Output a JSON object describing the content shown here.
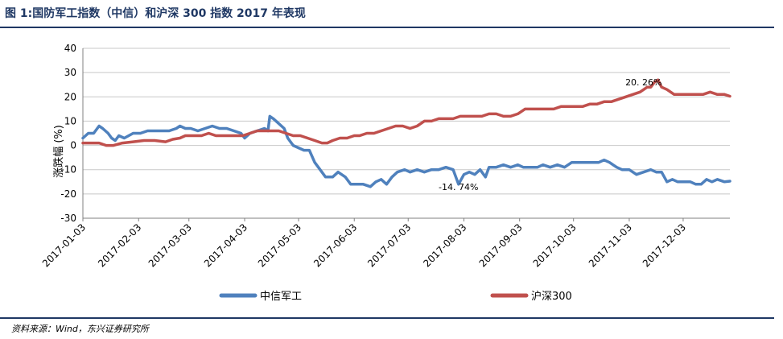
{
  "title": "图 1:国防军工指数（中信）和沪深 300 指数 2017 年表现",
  "source": "资料来源：Wind，东兴证券研究所",
  "chart_data": {
    "type": "line",
    "title": "图 1:国防军工指数（中信）和沪深 300 指数 2017 年表现",
    "xlabel": "",
    "ylabel": "涨跌幅 (%)",
    "ylim": [
      -30,
      40
    ],
    "yticks": [
      -30,
      -20,
      -10,
      0,
      10,
      20,
      30,
      40
    ],
    "xticks": [
      "2017-01-03",
      "2017-02-03",
      "2017-03-03",
      "2017-04-03",
      "2017-05-03",
      "2017-06-03",
      "2017-07-03",
      "2017-08-03",
      "2017-09-03",
      "2017-10-03",
      "2017-11-03",
      "2017-12-03"
    ],
    "xlim": [
      "2017-01-03",
      "2017-12-29"
    ],
    "grid": true,
    "legend": "bottom",
    "annotations": [
      {
        "text": "20. 26%",
        "x": "2017-11-11",
        "y": 26
      },
      {
        "text": "-14. 74%",
        "x": "2017-07-31",
        "y": -17
      }
    ],
    "series": [
      {
        "name": "中信军工",
        "color": "#4f81bd",
        "points": [
          [
            "2017-01-03",
            3
          ],
          [
            "2017-01-06",
            5
          ],
          [
            "2017-01-09",
            5
          ],
          [
            "2017-01-12",
            8
          ],
          [
            "2017-01-14",
            7
          ],
          [
            "2017-01-17",
            5
          ],
          [
            "2017-01-19",
            3
          ],
          [
            "2017-01-21",
            2
          ],
          [
            "2017-01-23",
            4
          ],
          [
            "2017-01-26",
            3
          ],
          [
            "2017-01-31",
            5
          ],
          [
            "2017-02-04",
            5
          ],
          [
            "2017-02-08",
            6
          ],
          [
            "2017-02-13",
            6
          ],
          [
            "2017-02-20",
            6
          ],
          [
            "2017-02-24",
            7
          ],
          [
            "2017-02-26",
            8
          ],
          [
            "2017-03-01",
            7
          ],
          [
            "2017-03-04",
            7
          ],
          [
            "2017-03-08",
            6
          ],
          [
            "2017-03-12",
            7
          ],
          [
            "2017-03-16",
            8
          ],
          [
            "2017-03-20",
            7
          ],
          [
            "2017-03-24",
            7
          ],
          [
            "2017-03-28",
            6
          ],
          [
            "2017-04-01",
            5
          ],
          [
            "2017-04-03",
            3
          ],
          [
            "2017-04-06",
            5
          ],
          [
            "2017-04-10",
            6
          ],
          [
            "2017-04-14",
            7
          ],
          [
            "2017-04-16",
            6
          ],
          [
            "2017-04-17",
            12
          ],
          [
            "2017-04-19",
            11
          ],
          [
            "2017-04-22",
            9
          ],
          [
            "2017-04-25",
            7
          ],
          [
            "2017-04-27",
            3
          ],
          [
            "2017-04-30",
            0
          ],
          [
            "2017-05-03",
            -1
          ],
          [
            "2017-05-06",
            -2
          ],
          [
            "2017-05-09",
            -2
          ],
          [
            "2017-05-12",
            -7
          ],
          [
            "2017-05-15",
            -10
          ],
          [
            "2017-05-18",
            -13
          ],
          [
            "2017-05-22",
            -13
          ],
          [
            "2017-05-25",
            -11
          ],
          [
            "2017-05-29",
            -13
          ],
          [
            "2017-06-01",
            -16
          ],
          [
            "2017-06-04",
            -16
          ],
          [
            "2017-06-08",
            -16
          ],
          [
            "2017-06-12",
            -17
          ],
          [
            "2017-06-15",
            -15
          ],
          [
            "2017-06-18",
            -14
          ],
          [
            "2017-06-21",
            -16
          ],
          [
            "2017-06-24",
            -13
          ],
          [
            "2017-06-27",
            -11
          ],
          [
            "2017-07-01",
            -10
          ],
          [
            "2017-07-04",
            -11
          ],
          [
            "2017-07-08",
            -10
          ],
          [
            "2017-07-12",
            -11
          ],
          [
            "2017-07-16",
            -10
          ],
          [
            "2017-07-20",
            -10
          ],
          [
            "2017-07-24",
            -9
          ],
          [
            "2017-07-28",
            -10
          ],
          [
            "2017-07-31",
            -16
          ],
          [
            "2017-08-03",
            -12
          ],
          [
            "2017-08-06",
            -11
          ],
          [
            "2017-08-09",
            -12
          ],
          [
            "2017-08-12",
            -10
          ],
          [
            "2017-08-15",
            -13
          ],
          [
            "2017-08-17",
            -9
          ],
          [
            "2017-08-21",
            -9
          ],
          [
            "2017-08-25",
            -8
          ],
          [
            "2017-08-29",
            -9
          ],
          [
            "2017-09-02",
            -8
          ],
          [
            "2017-09-05",
            -9
          ],
          [
            "2017-09-09",
            -9
          ],
          [
            "2017-09-13",
            -9
          ],
          [
            "2017-09-16",
            -8
          ],
          [
            "2017-09-20",
            -9
          ],
          [
            "2017-09-24",
            -8
          ],
          [
            "2017-09-28",
            -9
          ],
          [
            "2017-10-02",
            -7
          ],
          [
            "2017-10-06",
            -7
          ],
          [
            "2017-10-10",
            -7
          ],
          [
            "2017-10-14",
            -7
          ],
          [
            "2017-10-17",
            -7
          ],
          [
            "2017-10-20",
            -6
          ],
          [
            "2017-10-23",
            -7
          ],
          [
            "2017-10-27",
            -9
          ],
          [
            "2017-10-30",
            -10
          ],
          [
            "2017-11-03",
            -10
          ],
          [
            "2017-11-07",
            -12
          ],
          [
            "2017-11-11",
            -11
          ],
          [
            "2017-11-15",
            -10
          ],
          [
            "2017-11-18",
            -11
          ],
          [
            "2017-11-21",
            -11
          ],
          [
            "2017-11-24",
            -15
          ],
          [
            "2017-11-27",
            -14
          ],
          [
            "2017-11-30",
            -15
          ],
          [
            "2017-12-03",
            -15
          ],
          [
            "2017-12-07",
            -15
          ],
          [
            "2017-12-10",
            -16
          ],
          [
            "2017-12-13",
            -16
          ],
          [
            "2017-12-16",
            -14
          ],
          [
            "2017-12-19",
            -15
          ],
          [
            "2017-12-22",
            -14
          ],
          [
            "2017-12-26",
            -15
          ],
          [
            "2017-12-29",
            -14.74
          ]
        ]
      },
      {
        "name": "沪深300",
        "color": "#c0504d",
        "points": [
          [
            "2017-01-03",
            1
          ],
          [
            "2017-01-08",
            1
          ],
          [
            "2017-01-12",
            1
          ],
          [
            "2017-01-16",
            0
          ],
          [
            "2017-01-20",
            0
          ],
          [
            "2017-01-25",
            1
          ],
          [
            "2017-01-31",
            1.5
          ],
          [
            "2017-02-06",
            2
          ],
          [
            "2017-02-12",
            2
          ],
          [
            "2017-02-18",
            1.5
          ],
          [
            "2017-02-22",
            2.5
          ],
          [
            "2017-02-26",
            3
          ],
          [
            "2017-03-01",
            4
          ],
          [
            "2017-03-06",
            4
          ],
          [
            "2017-03-10",
            4
          ],
          [
            "2017-03-14",
            5
          ],
          [
            "2017-03-18",
            4
          ],
          [
            "2017-03-22",
            4
          ],
          [
            "2017-03-26",
            4
          ],
          [
            "2017-04-02",
            4
          ],
          [
            "2017-04-06",
            5
          ],
          [
            "2017-04-10",
            6
          ],
          [
            "2017-04-14",
            6
          ],
          [
            "2017-04-18",
            6
          ],
          [
            "2017-04-22",
            6
          ],
          [
            "2017-04-26",
            5
          ],
          [
            "2017-04-30",
            4
          ],
          [
            "2017-05-04",
            4
          ],
          [
            "2017-05-08",
            3
          ],
          [
            "2017-05-12",
            2
          ],
          [
            "2017-05-16",
            1
          ],
          [
            "2017-05-19",
            1
          ],
          [
            "2017-05-22",
            2
          ],
          [
            "2017-05-26",
            3
          ],
          [
            "2017-05-30",
            3
          ],
          [
            "2017-06-03",
            4
          ],
          [
            "2017-06-06",
            4
          ],
          [
            "2017-06-10",
            5
          ],
          [
            "2017-06-14",
            5
          ],
          [
            "2017-06-18",
            6
          ],
          [
            "2017-06-22",
            7
          ],
          [
            "2017-06-26",
            8
          ],
          [
            "2017-06-30",
            8
          ],
          [
            "2017-07-04",
            7
          ],
          [
            "2017-07-08",
            8
          ],
          [
            "2017-07-12",
            10
          ],
          [
            "2017-07-16",
            10
          ],
          [
            "2017-07-20",
            11
          ],
          [
            "2017-07-24",
            11
          ],
          [
            "2017-07-28",
            11
          ],
          [
            "2017-08-01",
            12
          ],
          [
            "2017-08-05",
            12
          ],
          [
            "2017-08-09",
            12
          ],
          [
            "2017-08-13",
            12
          ],
          [
            "2017-08-17",
            13
          ],
          [
            "2017-08-21",
            13
          ],
          [
            "2017-08-25",
            12
          ],
          [
            "2017-08-29",
            12
          ],
          [
            "2017-09-02",
            13
          ],
          [
            "2017-09-06",
            15
          ],
          [
            "2017-09-10",
            15
          ],
          [
            "2017-09-14",
            15
          ],
          [
            "2017-09-18",
            15
          ],
          [
            "2017-09-22",
            15
          ],
          [
            "2017-09-26",
            16
          ],
          [
            "2017-09-30",
            16
          ],
          [
            "2017-10-04",
            16
          ],
          [
            "2017-10-08",
            16
          ],
          [
            "2017-10-12",
            17
          ],
          [
            "2017-10-16",
            17
          ],
          [
            "2017-10-20",
            18
          ],
          [
            "2017-10-24",
            18
          ],
          [
            "2017-10-28",
            19
          ],
          [
            "2017-11-01",
            20
          ],
          [
            "2017-11-05",
            21
          ],
          [
            "2017-11-09",
            22
          ],
          [
            "2017-11-13",
            24
          ],
          [
            "2017-11-15",
            24
          ],
          [
            "2017-11-17",
            26
          ],
          [
            "2017-11-19",
            27
          ],
          [
            "2017-11-21",
            24
          ],
          [
            "2017-11-24",
            23
          ],
          [
            "2017-11-28",
            21
          ],
          [
            "2017-12-02",
            21
          ],
          [
            "2017-12-06",
            21
          ],
          [
            "2017-12-10",
            21
          ],
          [
            "2017-12-14",
            21
          ],
          [
            "2017-12-18",
            22
          ],
          [
            "2017-12-22",
            21
          ],
          [
            "2017-12-26",
            21
          ],
          [
            "2017-12-29",
            20.26
          ]
        ]
      }
    ]
  }
}
